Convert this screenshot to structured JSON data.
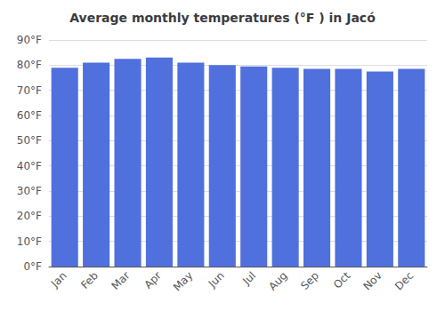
{
  "chart_data": {
    "type": "bar",
    "title": "Average monthly temperatures (°F ) in Jacó",
    "categories": [
      "Jan",
      "Feb",
      "Mar",
      "Apr",
      "May",
      "Jun",
      "Jul",
      "Aug",
      "Sep",
      "Oct",
      "Nov",
      "Dec"
    ],
    "values": [
      79.0,
      81.0,
      82.5,
      83.0,
      81.0,
      80.0,
      79.5,
      79.0,
      78.5,
      78.5,
      77.5,
      78.5
    ],
    "ylim": [
      0,
      90
    ],
    "yticks": [
      {
        "value": 0,
        "label": "0°F"
      },
      {
        "value": 10,
        "label": "10°F"
      },
      {
        "value": 20,
        "label": "20°F"
      },
      {
        "value": 30,
        "label": "30°F"
      },
      {
        "value": 40,
        "label": "40°F"
      },
      {
        "value": 50,
        "label": "50°F"
      },
      {
        "value": 60,
        "label": "60°F"
      },
      {
        "value": 70,
        "label": "70°F"
      },
      {
        "value": 80,
        "label": "80°F"
      },
      {
        "value": 90,
        "label": "90°F"
      }
    ],
    "grid": true
  }
}
